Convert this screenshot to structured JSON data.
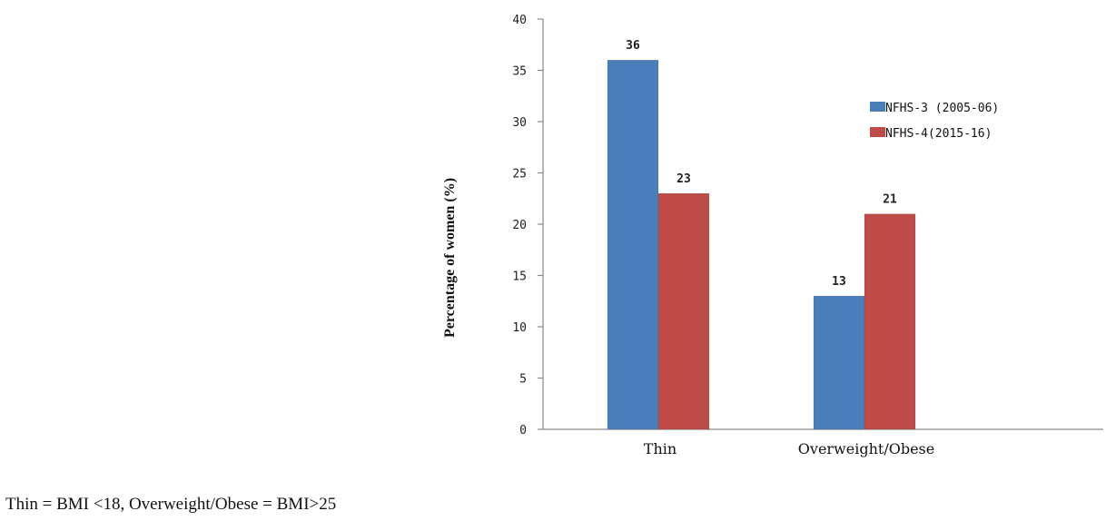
{
  "chart_data": {
    "type": "bar",
    "title": "",
    "xlabel": "",
    "ylabel": "Percentage of women (%)",
    "categories": [
      "Thin",
      "Overweight/Obese"
    ],
    "series": [
      {
        "name": "NFHS-3 (2005-06)",
        "values": [
          36,
          13
        ],
        "color": "#4a7ebb"
      },
      {
        "name": "NFHS-4(2015-16)",
        "values": [
          23,
          21
        ],
        "color": "#be4b48"
      }
    ],
    "ylim": [
      0,
      40
    ],
    "yticks": [
      0,
      5,
      10,
      15,
      20,
      25,
      30,
      35,
      40
    ],
    "grid": false,
    "legend_position": "right"
  },
  "footnote": "Thin = BMI <18, Overweight/Obese = BMI>25"
}
